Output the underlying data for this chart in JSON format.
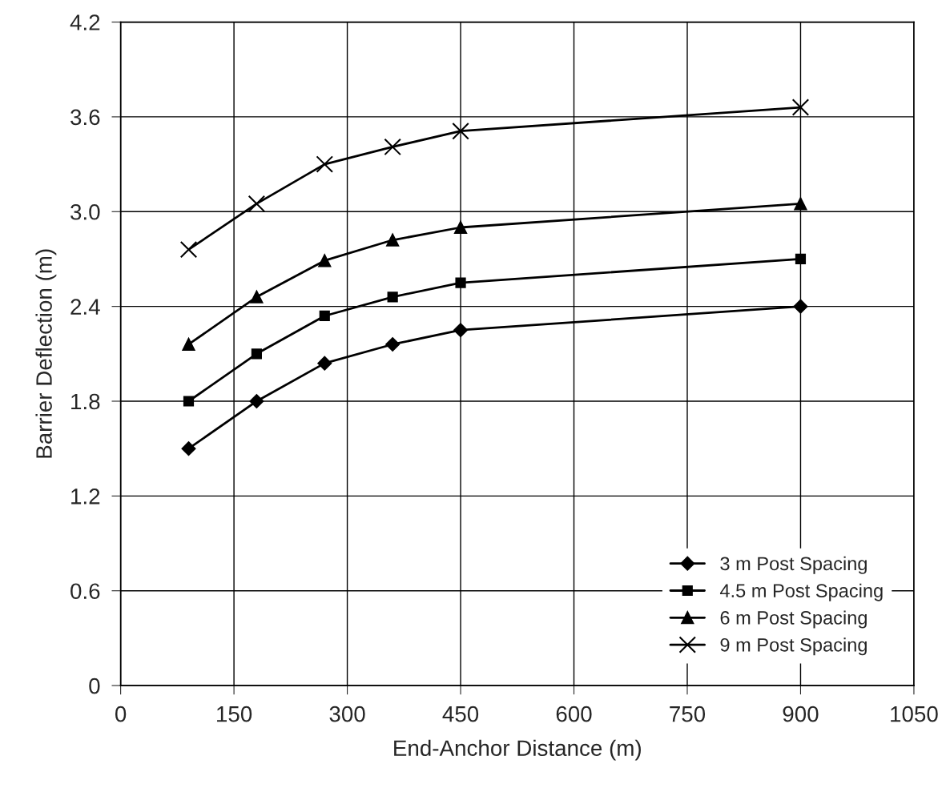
{
  "chart_data": {
    "type": "line",
    "xlabel": "End-Anchor Distance (m)",
    "ylabel": "Barrier Deflection (m)",
    "x": [
      90,
      180,
      270,
      360,
      450,
      900
    ],
    "series": [
      {
        "name": "3 m Post Spacing",
        "color": "#000000",
        "marker": "diamond",
        "values": [
          1.5,
          1.8,
          2.04,
          2.16,
          2.25,
          2.4
        ]
      },
      {
        "name": "4.5 m Post Spacing",
        "color": "#000000",
        "marker": "square",
        "values": [
          1.8,
          2.1,
          2.34,
          2.46,
          2.55,
          2.7
        ]
      },
      {
        "name": "6 m Post Spacing",
        "color": "#000000",
        "marker": "triangle",
        "values": [
          2.16,
          2.46,
          2.69,
          2.82,
          2.9,
          3.05
        ]
      },
      {
        "name": "9 m Post Spacing",
        "color": "#000000",
        "marker": "cross",
        "values": [
          2.76,
          3.05,
          3.3,
          3.41,
          3.51,
          3.66
        ]
      }
    ],
    "xlim": [
      0,
      1050
    ],
    "xticks": [
      0,
      150,
      300,
      450,
      600,
      750,
      900,
      1050
    ],
    "ylim": [
      0,
      4.2
    ],
    "yticks": [
      {
        "value": 0,
        "label": "0"
      },
      {
        "value": 0.6,
        "label": "0.6"
      },
      {
        "value": 1.2,
        "label": "1.2"
      },
      {
        "value": 1.8,
        "label": "1.8"
      },
      {
        "value": 2.4,
        "label": "2.4"
      },
      {
        "value": 3.0,
        "label": "3.0"
      },
      {
        "value": 3.6,
        "label": "3.6"
      },
      {
        "value": 4.2,
        "label": "4.2"
      }
    ],
    "grid": true,
    "legend": "bottom right",
    "line_style": "solid"
  }
}
